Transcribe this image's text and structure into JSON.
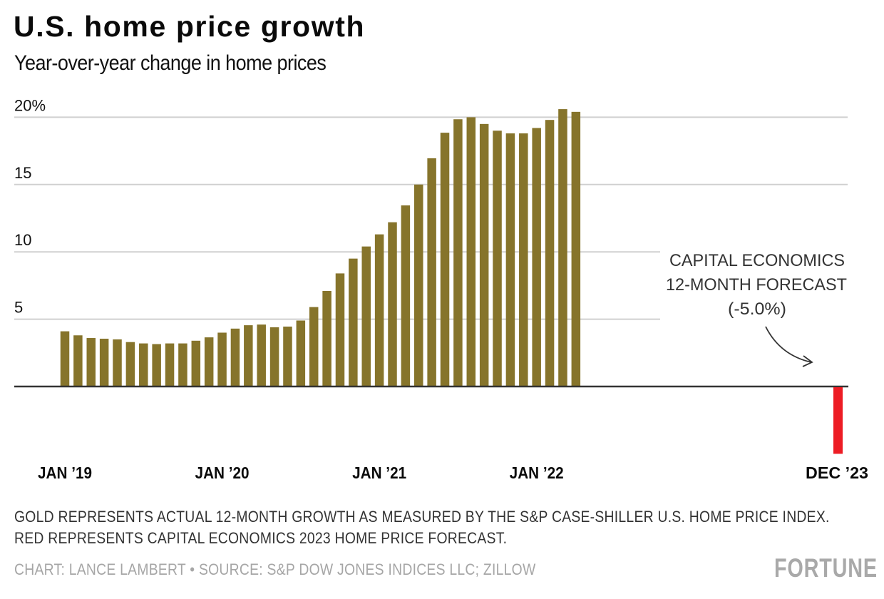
{
  "header": {
    "title": "U.S. home price growth",
    "subtitle": "Year-over-year change in home prices"
  },
  "annotation": {
    "lines": [
      "CAPITAL ECONOMICS",
      "12-MONTH FORECAST",
      "(-5.0%)"
    ]
  },
  "footer": {
    "note_line1": "GOLD REPRESENTS ACTUAL 12-MONTH GROWTH AS MEASURED BY THE S&P CASE-SHILLER U.S. HOME PRICE INDEX.",
    "note_line2": "RED REPRESENTS CAPITAL ECONOMICS 2023 HOME PRICE FORECAST.",
    "credit": "CHART: LANCE LAMBERT • SOURCE: S&P DOW JONES INDICES LLC; ZILLOW",
    "logo": "FORTUNE"
  },
  "colors": {
    "actual": "#86742b",
    "forecast": "#ed1c24",
    "grid": "#d0d0d0",
    "axis": "#333333"
  },
  "chart_data": {
    "type": "bar",
    "title": "U.S. home price growth",
    "subtitle": "Year-over-year change in home prices",
    "xlabel": "",
    "ylabel": "",
    "ylim": [
      -5,
      20
    ],
    "yticks": [
      5,
      10,
      15,
      20
    ],
    "ytick_labels": [
      "5",
      "10",
      "15",
      "20%"
    ],
    "grid": true,
    "x_tick_labels": [
      {
        "label": "JAN '19",
        "index": 0
      },
      {
        "label": "JAN '20",
        "index": 12
      },
      {
        "label": "JAN '21",
        "index": 24
      },
      {
        "label": "JAN '22",
        "index": 36
      },
      {
        "label": "DEC '23",
        "index": 59
      }
    ],
    "series": [
      {
        "name": "Actual 12-month growth (S&P CoreLogic Case-Shiller U.S. Home Price Index)",
        "color": "#86742b",
        "start": "2019-01",
        "values": [
          4.1,
          3.8,
          3.6,
          3.55,
          3.5,
          3.3,
          3.2,
          3.15,
          3.2,
          3.2,
          3.4,
          3.65,
          4.0,
          4.3,
          4.55,
          4.6,
          4.4,
          4.45,
          4.9,
          5.9,
          7.1,
          8.4,
          9.5,
          10.4,
          11.3,
          12.2,
          13.45,
          15.0,
          16.95,
          18.85,
          19.85,
          20.0,
          19.5,
          19.0,
          18.8,
          18.8,
          19.2,
          19.8,
          20.6,
          20.4
        ]
      },
      {
        "name": "Capital Economics 12-month forecast",
        "color": "#ed1c24",
        "points": [
          {
            "label": "DEC '23",
            "index": 59,
            "value": -5.0
          }
        ]
      }
    ],
    "annotations": [
      {
        "text": "CAPITAL ECONOMICS 12-MONTH FORECAST (-5.0%)",
        "target": "DEC '23"
      }
    ]
  }
}
